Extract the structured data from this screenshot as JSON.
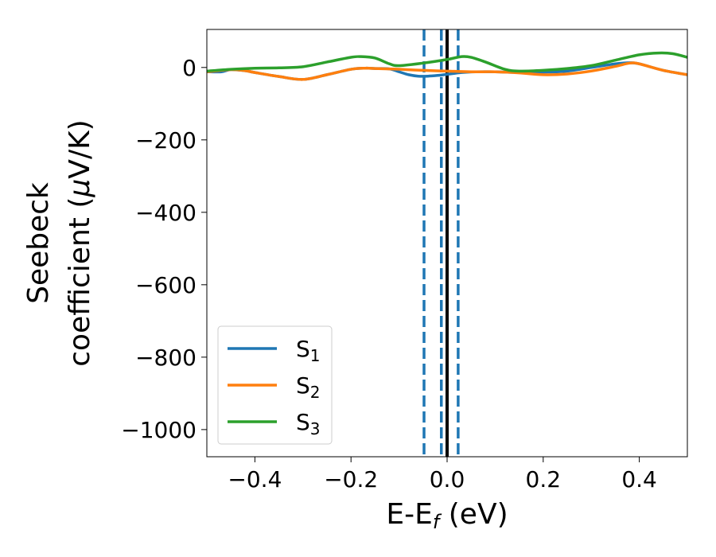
{
  "chart_data": {
    "type": "line",
    "xlabel": {
      "main": "E-E",
      "sub": "f",
      "tail": " (eV)"
    },
    "ylabel": {
      "line1": "Seebeck",
      "line2_text": "coefficient  (",
      "line2_mu": "μ",
      "line2_unit": "V/K)"
    },
    "xlim": [
      -0.5,
      0.5
    ],
    "ylim": [
      -1075,
      105
    ],
    "xticks": [
      -0.4,
      -0.2,
      0.0,
      0.2,
      0.4
    ],
    "xtick_labels": [
      "−0.4",
      "−0.2",
      "0.0",
      "0.2",
      "0.4"
    ],
    "yticks": [
      0,
      -200,
      -400,
      -600,
      -800,
      -1000
    ],
    "ytick_labels": [
      "0",
      "−200",
      "−400",
      "−600",
      "−800",
      "−1000"
    ],
    "grid": false,
    "legend_placement": "lower-left",
    "vlines": [
      {
        "x": -0.048,
        "style": "dashed",
        "color": "#1f77b4"
      },
      {
        "x": -0.012,
        "style": "dashed",
        "color": "#1f77b4"
      },
      {
        "x": 0.023,
        "style": "dashed",
        "color": "#1f77b4"
      },
      {
        "x": 0.0,
        "style": "solid",
        "color": "#000000"
      }
    ],
    "series": [
      {
        "name": "S",
        "subscript": "1",
        "color": "#1f77b4",
        "x": [
          -0.5,
          -0.47,
          -0.45,
          -0.42,
          -0.4,
          -0.35,
          -0.3,
          -0.25,
          -0.2,
          -0.17,
          -0.15,
          -0.12,
          -0.1,
          -0.08,
          -0.06,
          -0.04,
          -0.02,
          0.0,
          0.03,
          0.06,
          0.1,
          0.15,
          0.2,
          0.25,
          0.3,
          0.35,
          0.38,
          0.4,
          0.45,
          0.5
        ],
        "y": [
          -12,
          -12,
          -6,
          -9,
          -14,
          -25,
          -33,
          -20,
          -5,
          -2,
          -3,
          -4,
          -12,
          -20,
          -24,
          -24,
          -22,
          -19,
          -14,
          -12,
          -12,
          -14,
          -13,
          -10,
          0,
          10,
          13,
          10,
          -8,
          -20
        ]
      },
      {
        "name": "S",
        "subscript": "2",
        "color": "#ff7f0e",
        "x": [
          -0.5,
          -0.45,
          -0.42,
          -0.4,
          -0.35,
          -0.3,
          -0.25,
          -0.2,
          -0.17,
          -0.15,
          -0.12,
          -0.1,
          -0.05,
          0.0,
          0.05,
          0.1,
          0.15,
          0.2,
          0.25,
          0.3,
          0.35,
          0.38,
          0.4,
          0.45,
          0.5
        ],
        "y": [
          -12,
          -6,
          -9,
          -14,
          -25,
          -33,
          -20,
          -5,
          -2,
          -3,
          -4,
          -5,
          -8,
          -10,
          -12,
          -12,
          -15,
          -20,
          -18,
          -10,
          3,
          12,
          10,
          -8,
          -20
        ]
      },
      {
        "name": "S",
        "subscript": "3",
        "color": "#2ca02c",
        "x": [
          -0.5,
          -0.45,
          -0.4,
          -0.35,
          -0.3,
          -0.25,
          -0.2,
          -0.18,
          -0.15,
          -0.12,
          -0.1,
          -0.05,
          0.0,
          0.03,
          0.05,
          0.08,
          0.12,
          0.15,
          0.2,
          0.25,
          0.3,
          0.35,
          0.4,
          0.44,
          0.47,
          0.5
        ],
        "y": [
          -10,
          -5,
          -2,
          -1,
          2,
          15,
          28,
          30,
          26,
          10,
          5,
          12,
          22,
          30,
          28,
          15,
          -5,
          -10,
          -8,
          -3,
          5,
          20,
          35,
          40,
          38,
          28
        ]
      }
    ]
  }
}
